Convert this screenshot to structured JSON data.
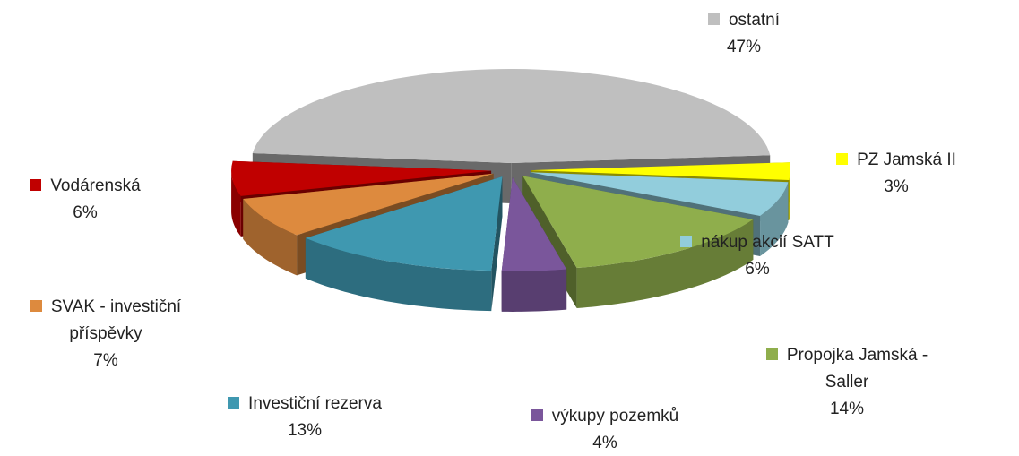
{
  "chart_data": {
    "type": "pie",
    "categories": [
      "ostatní",
      "PZ Jamská II",
      "nákup akcií SATT",
      "Propojka Jamská - Saller",
      "výkupy pozemků",
      "Investiční rezerva",
      "SVAK - investiční příspěvky",
      "Vodárenská"
    ],
    "values": [
      47,
      3,
      6,
      14,
      4,
      13,
      7,
      6
    ],
    "value_labels": [
      "47%",
      "3%",
      "6%",
      "14%",
      "4%",
      "13%",
      "7%",
      "6%"
    ],
    "colors": [
      "#bfbfbf",
      "#ffff00",
      "#92cddc",
      "#8fae4c",
      "#7a569b",
      "#3f98b0",
      "#dd8a3e",
      "#c00000"
    ]
  }
}
